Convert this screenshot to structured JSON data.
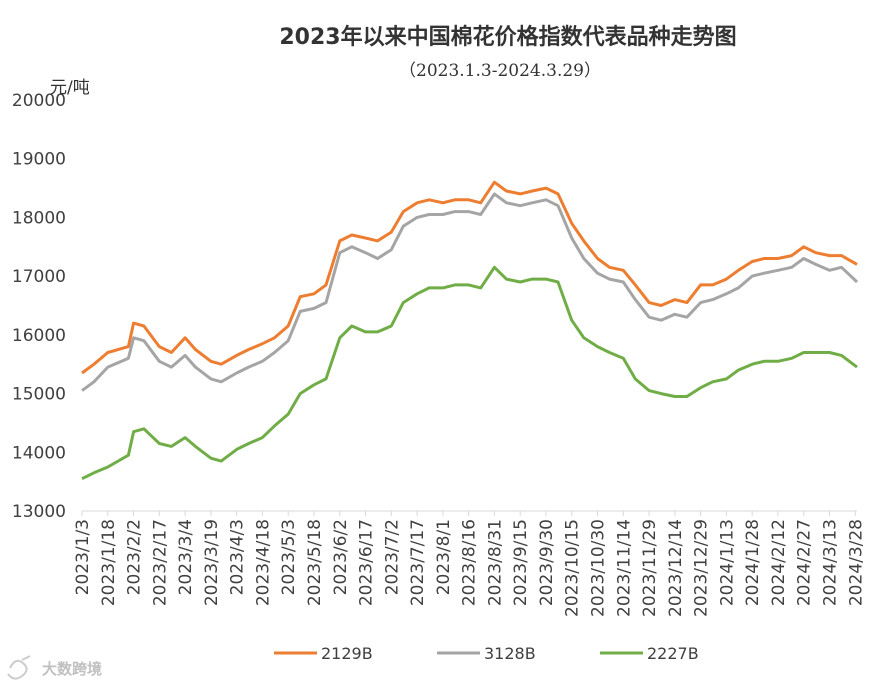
{
  "chart_data": {
    "type": "line",
    "title": "2023年以来中国棉花价格指数代表品种走势图",
    "subtitle": "（2023.1.3-2024.3.29）",
    "ylabel": "元/吨",
    "ylim": [
      13000,
      20000
    ],
    "yticks": [
      13000,
      14000,
      15000,
      16000,
      17000,
      18000,
      19000,
      20000
    ],
    "x_tick_labels": [
      "2023/1/3",
      "2023/1/18",
      "2023/2/2",
      "2023/2/17",
      "2023/3/4",
      "2023/3/19",
      "2023/4/3",
      "2023/4/18",
      "2023/5/3",
      "2023/5/18",
      "2023/6/2",
      "2023/6/17",
      "2023/7/2",
      "2023/7/17",
      "2023/8/1",
      "2023/8/16",
      "2023/8/31",
      "2023/9/15",
      "2023/9/30",
      "2023/10/15",
      "2023/10/30",
      "2023/11/14",
      "2023/11/29",
      "2023/12/14",
      "2023/12/29",
      "2024/1/13",
      "2024/1/28",
      "2024/2/12",
      "2024/2/27",
      "2024/3/13",
      "2024/3/28"
    ],
    "x": [
      "2023/1/3",
      "2023/1/10",
      "2023/1/18",
      "2023/1/30",
      "2023/2/2",
      "2023/2/8",
      "2023/2/17",
      "2023/2/24",
      "2023/3/4",
      "2023/3/10",
      "2023/3/19",
      "2023/3/25",
      "2023/4/3",
      "2023/4/10",
      "2023/4/18",
      "2023/4/25",
      "2023/5/3",
      "2023/5/10",
      "2023/5/18",
      "2023/5/25",
      "2023/6/2",
      "2023/6/9",
      "2023/6/17",
      "2023/6/24",
      "2023/7/2",
      "2023/7/9",
      "2023/7/17",
      "2023/7/24",
      "2023/8/1",
      "2023/8/8",
      "2023/8/16",
      "2023/8/23",
      "2023/8/31",
      "2023/9/7",
      "2023/9/15",
      "2023/9/22",
      "2023/9/30",
      "2023/10/7",
      "2023/10/15",
      "2023/10/22",
      "2023/10/30",
      "2023/11/6",
      "2023/11/14",
      "2023/11/21",
      "2023/11/29",
      "2023/12/6",
      "2023/12/14",
      "2023/12/21",
      "2023/12/29",
      "2024/1/5",
      "2024/1/13",
      "2024/1/20",
      "2024/1/28",
      "2024/2/4",
      "2024/2/12",
      "2024/2/20",
      "2024/2/27",
      "2024/3/5",
      "2024/3/13",
      "2024/3/20",
      "2024/3/29"
    ],
    "series": [
      {
        "name": "2129B",
        "color": "#ED7D31",
        "values": [
          15350,
          15500,
          15700,
          15800,
          16200,
          16150,
          15800,
          15700,
          15950,
          15750,
          15550,
          15500,
          15650,
          15750,
          15850,
          15950,
          16150,
          16650,
          16700,
          16850,
          17600,
          17700,
          17650,
          17600,
          17750,
          18100,
          18250,
          18300,
          18250,
          18300,
          18300,
          18250,
          18600,
          18450,
          18400,
          18450,
          18500,
          18400,
          17900,
          17600,
          17300,
          17150,
          17100,
          16850,
          16550,
          16500,
          16600,
          16550,
          16850,
          16850,
          16950,
          17100,
          17250,
          17300,
          17300,
          17350,
          17500,
          17400,
          17350,
          17350,
          17200
        ]
      },
      {
        "name": "3128B",
        "color": "#A5A5A5",
        "values": [
          15050,
          15200,
          15450,
          15600,
          15950,
          15900,
          15550,
          15450,
          15650,
          15450,
          15250,
          15200,
          15350,
          15450,
          15550,
          15700,
          15900,
          16400,
          16450,
          16550,
          17400,
          17500,
          17400,
          17300,
          17450,
          17850,
          18000,
          18050,
          18050,
          18100,
          18100,
          18050,
          18400,
          18250,
          18200,
          18250,
          18300,
          18200,
          17650,
          17300,
          17050,
          16950,
          16900,
          16600,
          16300,
          16250,
          16350,
          16300,
          16550,
          16600,
          16700,
          16800,
          17000,
          17050,
          17100,
          17150,
          17300,
          17200,
          17100,
          17150,
          16900
        ]
      },
      {
        "name": "2227B",
        "color": "#70AD47",
        "values": [
          13550,
          13650,
          13750,
          13950,
          14350,
          14400,
          14150,
          14100,
          14250,
          14100,
          13900,
          13850,
          14050,
          14150,
          14250,
          14450,
          14650,
          15000,
          15150,
          15250,
          15950,
          16150,
          16050,
          16050,
          16150,
          16550,
          16700,
          16800,
          16800,
          16850,
          16850,
          16800,
          17150,
          16950,
          16900,
          16950,
          16950,
          16900,
          16250,
          15950,
          15800,
          15700,
          15600,
          15250,
          15050,
          15000,
          14950,
          14950,
          15100,
          15200,
          15250,
          15400,
          15500,
          15550,
          15550,
          15600,
          15700,
          15700,
          15700,
          15650,
          15450
        ]
      }
    ],
    "legend_position": "bottom",
    "grid": false
  },
  "watermark": "大数跨境"
}
